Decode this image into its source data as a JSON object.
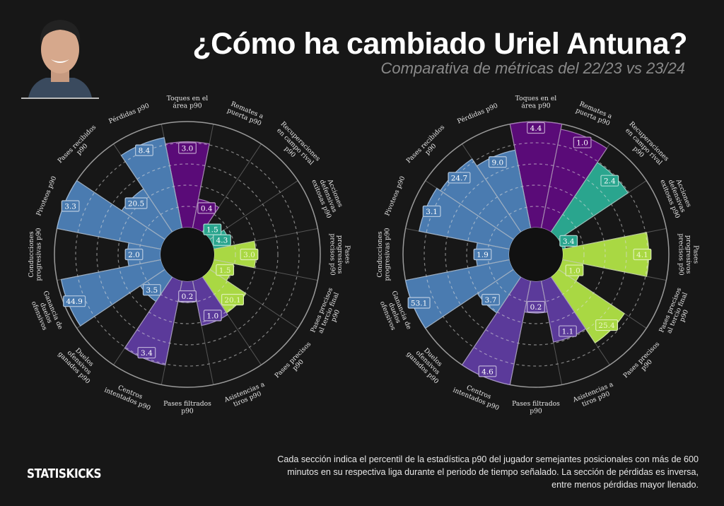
{
  "header": {
    "title": "¿Cómo ha cambiado Uriel Antuna?",
    "subtitle": "Comparativa de métricas del 22/23 vs 23/24"
  },
  "footer": {
    "logo": "STATISKICKS",
    "note": "Cada sección indica el percentil de la estadística p90 del jugador semejantes posicionales con más de 600 minutos en su respectiva liga durante el periodo de tiempo señalado. La sección de pérdidas es inversa, entre menos pérdidas mayor llenado."
  },
  "colors": {
    "background": "#171717",
    "attack": "#5a0b78",
    "defense": "#2aa58e",
    "passing": "#a9d843",
    "creation": "#5b3a9a",
    "possession": "#4a7bb0"
  },
  "chart_data": [
    {
      "type": "pie",
      "subtype": "pizza",
      "season": "22/23",
      "rlim": [
        0,
        100
      ],
      "grid": true,
      "categories": [
        "Toques en el\nárea p90",
        "Remates a\npuerta p90",
        "Recuperaciones\nen campo rival\np90",
        "Acciones\ndefensivas\nexitosas p90",
        "Pases\nprogresivos\nprecisos p90",
        "Pases precisos\nal tercio final\np90",
        "Pases precisos\np90",
        "Asistencias a\ntiros p90",
        "Pases filtrados\np90",
        "Centros\nintentados p90",
        "Duelos\nofensivos\nganados p90",
        "Ganancia de\nduelos\nofensivos",
        "Conducciones\nprogresivas p90",
        "Pivoteos p90",
        "Pases recibidos\np90",
        "Pérdidas p90"
      ],
      "groups": [
        "attack",
        "attack",
        "defense",
        "defense",
        "passing",
        "passing",
        "passing",
        "creation",
        "creation",
        "creation",
        "possession",
        "possession",
        "possession",
        "possession",
        "possession",
        "possession"
      ],
      "percentiles": [
        81,
        28,
        8,
        16,
        39,
        19,
        41,
        43,
        20,
        81,
        28,
        96,
        31,
        100,
        49,
        87
      ],
      "values": [
        "3.0",
        "0.4",
        "1.5",
        "4.3",
        "3.0",
        "1.5",
        "20.1",
        "1.0",
        "0.2",
        "3.4",
        "3.5",
        "44.9",
        "2.0",
        "3.3",
        "20.5",
        "8.4"
      ]
    },
    {
      "type": "pie",
      "subtype": "pizza",
      "season": "23/24",
      "rlim": [
        0,
        100
      ],
      "grid": true,
      "categories": [
        "Toques en el\nárea p90",
        "Remates a\npuerta p90",
        "Recuperaciones\nen campo rival\np90",
        "Acciones\ndefensivas\nexitosas p90",
        "Pases\nprogresivos\nprecisos p90",
        "Pases precisos\nal tercio final\np90",
        "Pases precisos\np90",
        "Asistencias a\ntiros p90",
        "Pases filtrados\np90",
        "Centros\nintentados p90",
        "Duelos\nofensivos\nganados p90",
        "Ganancia de\nduelos\nofensivos",
        "Conducciones\nprogresivas p90",
        "Pivoteos p90",
        "Pases recibidos\np90",
        "Pérdidas p90"
      ],
      "groups": [
        "attack",
        "attack",
        "defense",
        "defense",
        "passing",
        "passing",
        "passing",
        "creation",
        "creation",
        "creation",
        "possession",
        "possession",
        "possession",
        "possession",
        "possession",
        "possession"
      ],
      "percentiles": [
        100,
        95,
        79,
        3,
        81,
        20,
        75,
        59,
        30,
        100,
        41,
        100,
        31,
        87,
        83,
        75
      ],
      "values": [
        "4.4",
        "1.0",
        "2.4",
        "3.4",
        "4.1",
        "1.0",
        "25.4",
        "1.1",
        "0.2",
        "4.6",
        "3.7",
        "53.1",
        "1.9",
        "3.1",
        "24.7",
        "9.0"
      ]
    }
  ]
}
